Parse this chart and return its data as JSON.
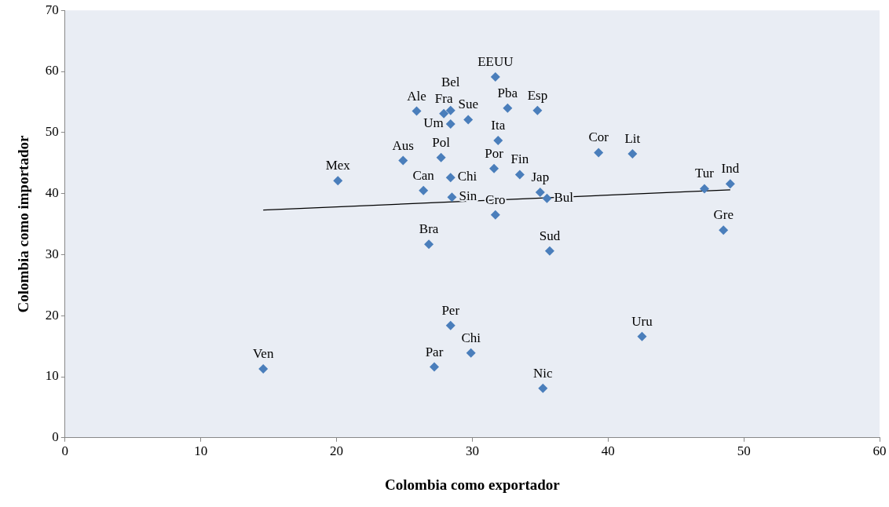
{
  "chart_data": {
    "type": "scatter",
    "xlabel": "Colombia como exportador",
    "ylabel": "Colombia como importador",
    "marker": "diamond",
    "grid": false,
    "legend": false,
    "xlim": [
      0,
      60
    ],
    "xticks": [
      0,
      10,
      20,
      30,
      40,
      50,
      60
    ],
    "ylim": [
      0,
      70
    ],
    "yticks": [
      0,
      10,
      20,
      30,
      40,
      50,
      60,
      70
    ],
    "series": [
      {
        "type": "scatter",
        "color": "#4a7ebb",
        "x": [
          31.7,
          25.9,
          27.9,
          28.4,
          28.4,
          29.7,
          32.6,
          34.8,
          31.9,
          39.3,
          41.8,
          24.9,
          27.7,
          28.4,
          31.6,
          33.5,
          26.4,
          28.5,
          35.0,
          35.5,
          31.7,
          26.8,
          20.1,
          35.7,
          47.1,
          49.0,
          48.5,
          28.4,
          29.9,
          27.2,
          14.6,
          35.2,
          42.5
        ],
        "values": [
          59.1,
          53.5,
          53.1,
          53.6,
          51.4,
          52.1,
          54.0,
          53.6,
          48.7,
          46.7,
          46.5,
          45.4,
          45.9,
          42.6,
          44.1,
          43.1,
          40.5,
          39.4,
          40.2,
          39.2,
          36.5,
          31.7,
          42.1,
          30.6,
          40.8,
          41.6,
          34.0,
          18.4,
          13.9,
          11.6,
          11.3,
          8.1,
          16.6
        ]
      },
      {
        "type": "line",
        "color": "#000000",
        "marker": "none",
        "x": [
          14.6,
          49.0
        ],
        "values": [
          37.3,
          40.6
        ]
      }
    ],
    "annotations": [
      {
        "text": "EEUU",
        "x": 31.7,
        "y": 59.1
      },
      {
        "text": "Ale",
        "x": 25.9,
        "y": 53.5
      },
      {
        "text": "Fra",
        "x": 27.9,
        "y": 53.1
      },
      {
        "text": "Bel",
        "x": 28.4,
        "y": 53.6
      },
      {
        "text": "Um",
        "x": 28.4,
        "y": 51.4
      },
      {
        "text": "Sue",
        "x": 29.7,
        "y": 52.1
      },
      {
        "text": "Pba",
        "x": 32.6,
        "y": 54.0
      },
      {
        "text": "Esp",
        "x": 34.8,
        "y": 53.6
      },
      {
        "text": "Ita",
        "x": 31.9,
        "y": 48.7
      },
      {
        "text": "Cor",
        "x": 39.3,
        "y": 46.7
      },
      {
        "text": "Lit",
        "x": 41.8,
        "y": 46.5
      },
      {
        "text": "Aus",
        "x": 24.9,
        "y": 45.4
      },
      {
        "text": "Pol",
        "x": 27.7,
        "y": 45.9
      },
      {
        "text": "Chi",
        "x": 28.4,
        "y": 42.6
      },
      {
        "text": "Por",
        "x": 31.6,
        "y": 44.1
      },
      {
        "text": "Fin",
        "x": 33.5,
        "y": 43.1
      },
      {
        "text": "Can",
        "x": 26.4,
        "y": 40.5
      },
      {
        "text": "Sin",
        "x": 28.5,
        "y": 39.4
      },
      {
        "text": "Jap",
        "x": 35.0,
        "y": 40.2
      },
      {
        "text": "Bul",
        "x": 35.5,
        "y": 39.2
      },
      {
        "text": "Cro",
        "x": 31.7,
        "y": 36.5
      },
      {
        "text": "Bra",
        "x": 26.8,
        "y": 31.7
      },
      {
        "text": "Mex",
        "x": 20.1,
        "y": 42.1
      },
      {
        "text": "Sud",
        "x": 35.7,
        "y": 30.6
      },
      {
        "text": "Tur",
        "x": 47.1,
        "y": 40.8
      },
      {
        "text": "Ind",
        "x": 49.0,
        "y": 41.6
      },
      {
        "text": "Gre",
        "x": 48.5,
        "y": 34.0
      },
      {
        "text": "Per",
        "x": 28.4,
        "y": 18.4
      },
      {
        "text": "Chi",
        "x": 29.9,
        "y": 13.9
      },
      {
        "text": "Par",
        "x": 27.2,
        "y": 11.6
      },
      {
        "text": "Ven",
        "x": 14.6,
        "y": 11.3
      },
      {
        "text": "Nic",
        "x": 35.2,
        "y": 8.1
      },
      {
        "text": "Uru",
        "x": 42.5,
        "y": 16.6
      }
    ]
  }
}
